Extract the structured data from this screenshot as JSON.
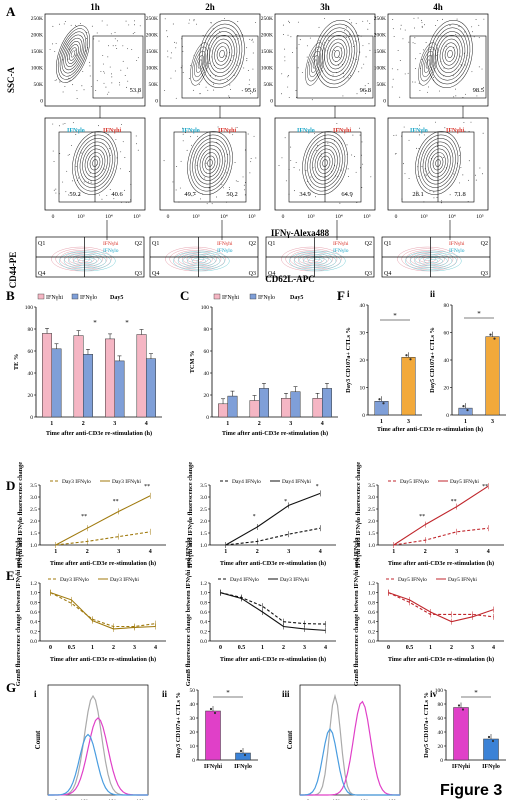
{
  "panel_labels": [
    "A",
    "B",
    "C",
    "D",
    "E",
    "F",
    "G"
  ],
  "figure_title": "Figure 3",
  "panelA": {
    "time_titles": [
      "1h",
      "2h",
      "3h",
      "4h"
    ],
    "ytick_row1": [
      "250K",
      "200K",
      "150K",
      "100K",
      "50K",
      "0"
    ],
    "row1_values": [
      "53.8",
      "95.6",
      "96.8",
      "98.5"
    ],
    "row2_left": [
      "59.2",
      "49.7",
      "34.9",
      "28.1"
    ],
    "row2_right": [
      "40.6",
      "50.2",
      "64.9",
      "71.8"
    ],
    "row2_labels": {
      "lo": "IFNγlo",
      "hi": "IFNγhi"
    },
    "xtick": [
      "0",
      "10³",
      "10⁴",
      "10⁵"
    ],
    "ylabel_top": "SSC-A",
    "xlabel_mid": "IFNγ-Alexa488",
    "row3_quads": [
      "Q1",
      "Q2",
      "Q3",
      "Q4"
    ],
    "row3_legend": [
      "IFNγhi",
      "IFNγlo"
    ],
    "ylabel_bottom": "CD44-PE",
    "xlabel_bottom": "CD62L-APC"
  },
  "panelB": {
    "ylabel": "TE %",
    "legend": [
      "IFNγhi",
      "IFNγlo",
      "Day5"
    ],
    "xlabel": "Time after anti-CD3e re-stimulation (h)",
    "categories": [
      "1",
      "2",
      "3",
      "4"
    ],
    "yticks": [
      "0",
      "20",
      "40",
      "60",
      "80",
      "100"
    ],
    "sig": [
      "*",
      "*"
    ]
  },
  "panelC": {
    "ylabel": "TCM %",
    "legend": [
      "IFNγhi",
      "IFNγlo",
      "Day5"
    ],
    "xlabel": "Time after anti-CD3e re-stimulation (h)",
    "categories": [
      "1",
      "2",
      "3",
      "4"
    ],
    "yticks": [
      "0",
      "20",
      "40",
      "60",
      "80",
      "100"
    ]
  },
  "panelF": {
    "sub": [
      "i",
      "ii"
    ],
    "ylabel_i": "Day3 CD107a+ CTLs %",
    "ylabel_ii": "Day5 CD107a+ CTLs %",
    "yticks_i": [
      "0",
      "10",
      "20",
      "30",
      "40"
    ],
    "yticks_ii": [
      "0",
      "20",
      "40",
      "60",
      "80"
    ],
    "categories": [
      "1",
      "3"
    ],
    "xlabel": "Time after anti-CD3e re-stimulation (h)",
    "sig": "*"
  },
  "panelD": {
    "ylabel": "IFNγhi and IFNγlo fluorescence change",
    "legends": [
      [
        "Day3 IFNγlo",
        "Day3 IFNγhi"
      ],
      [
        "Day4 IFNγlo",
        "Day4 IFNγhi"
      ],
      [
        "Day5 IFNγlo",
        "Day5 IFNγhi"
      ]
    ],
    "yticks": [
      "1.0",
      "1.5",
      "2.0",
      "2.5",
      "3.0",
      "3.5"
    ],
    "categories": [
      "1",
      "2",
      "3",
      "4"
    ],
    "xlabel": "Time after anti-CD3e re-stimulation (h)",
    "sig_ticks": [
      "**",
      "**",
      "**",
      "*",
      "*",
      "*",
      "**",
      "**",
      "**"
    ]
  },
  "panelE": {
    "ylabel": "GzmB fluorescence change between IFNγhi and IFNγlo",
    "legends": [
      [
        "Day3 IFNγlo",
        "Day3 IFNγhi"
      ],
      [
        "Day4 IFNγlo",
        "Day3 IFNγhi"
      ],
      [
        "Day5 IFNγlo",
        "Day5 IFNγhi"
      ]
    ],
    "yticks": [
      "0.0",
      "0.2",
      "0.4",
      "0.6",
      "0.8",
      "1.0",
      "1.2"
    ],
    "categories": [
      "0",
      "0.5",
      "1",
      "2",
      "3",
      "4"
    ],
    "xlabel": "Time after anti-CD3e re-stimulation (h)"
  },
  "panelG": {
    "sub": [
      "i",
      "ii",
      "iii",
      "iv"
    ],
    "ylabel_hist": "Count",
    "xlabel_hist": "CD107a-PE",
    "xtick": [
      "0",
      "10³",
      "10⁴",
      "10⁵"
    ],
    "ylabel_ii": "Day3 CD107a+ CTLs %",
    "ylabel_iv": "Day5 CD107a+ CTLs %",
    "yticks_ii": [
      "0",
      "10",
      "20",
      "30",
      "40",
      "50"
    ],
    "yticks_iv": [
      "0",
      "20",
      "40",
      "60",
      "80",
      "100"
    ],
    "categories": [
      "IFNγhi",
      "IFNγlo"
    ],
    "sig": "*"
  },
  "colors": {
    "pink": "#f5b6c4",
    "blue": "#7f9fd8",
    "gold": "#a07a0e",
    "black": "#111111",
    "red": "#c0262c",
    "orange": "#e9a74a",
    "magenta": "#e040c8",
    "lightblue": "#4a9de0",
    "gray": "#aaaaaa"
  },
  "chart_data": [
    {
      "type": "bar",
      "panel": "B",
      "categories": [
        "1",
        "2",
        "3",
        "4"
      ],
      "series": [
        {
          "name": "IFNγhi",
          "values": [
            76,
            74,
            71,
            75
          ]
        },
        {
          "name": "IFNγlo",
          "values": [
            62,
            57,
            51,
            53
          ]
        }
      ],
      "ylim": [
        0,
        100
      ]
    },
    {
      "type": "bar",
      "panel": "C",
      "categories": [
        "1",
        "2",
        "3",
        "4"
      ],
      "series": [
        {
          "name": "IFNγhi",
          "values": [
            12,
            15,
            17,
            17
          ]
        },
        {
          "name": "IFNγlo",
          "values": [
            19,
            26,
            23,
            26
          ]
        }
      ],
      "ylim": [
        0,
        100
      ]
    },
    {
      "type": "bar",
      "panel": "F-i",
      "categories": [
        "1",
        "3"
      ],
      "values": [
        5,
        21
      ],
      "ylim": [
        0,
        40
      ]
    },
    {
      "type": "bar",
      "panel": "F-ii",
      "categories": [
        "1",
        "3"
      ],
      "values": [
        5,
        57
      ],
      "ylim": [
        0,
        80
      ]
    },
    {
      "type": "line",
      "panel": "D-day3",
      "x": [
        1,
        2,
        3,
        4
      ],
      "series": [
        {
          "name": "Day3 IFNγlo",
          "values": [
            1.0,
            1.15,
            1.35,
            1.55
          ]
        },
        {
          "name": "Day3 IFNγhi",
          "values": [
            1.0,
            1.7,
            2.4,
            3.05
          ]
        }
      ]
    },
    {
      "type": "line",
      "panel": "D-day4",
      "x": [
        1,
        2,
        3,
        4
      ],
      "series": [
        {
          "name": "Day4 IFNγlo",
          "values": [
            1.0,
            1.15,
            1.45,
            1.7
          ]
        },
        {
          "name": "Day4 IFNγhi",
          "values": [
            1.0,
            1.75,
            2.65,
            3.15
          ]
        }
      ]
    },
    {
      "type": "line",
      "panel": "D-day5",
      "x": [
        1,
        2,
        3,
        4
      ],
      "series": [
        {
          "name": "Day5 IFNγlo",
          "values": [
            1.0,
            1.2,
            1.55,
            1.7
          ]
        },
        {
          "name": "Day5 IFNγhi",
          "values": [
            1.0,
            1.85,
            2.6,
            3.45
          ]
        }
      ]
    },
    {
      "type": "line",
      "panel": "E-day3",
      "x": [
        "0",
        "0.5",
        "1",
        "2",
        "3",
        "4"
      ],
      "series": [
        {
          "name": "Day3 IFNγlo",
          "values": [
            1.0,
            0.78,
            0.45,
            0.3,
            0.3,
            0.36
          ]
        },
        {
          "name": "Day3 IFNγhi",
          "values": [
            1.0,
            0.85,
            0.42,
            0.25,
            0.28,
            0.3
          ]
        }
      ]
    },
    {
      "type": "line",
      "panel": "E-day4",
      "x": [
        "0",
        "0.5",
        "1",
        "2",
        "3",
        "4"
      ],
      "series": [
        {
          "name": "Day4 IFNγlo",
          "values": [
            1.0,
            0.9,
            0.72,
            0.4,
            0.36,
            0.35
          ]
        },
        {
          "name": "Day3 IFNγhi",
          "values": [
            1.0,
            0.88,
            0.6,
            0.3,
            0.25,
            0.22
          ]
        }
      ]
    },
    {
      "type": "line",
      "panel": "E-day5",
      "x": [
        "0",
        "0.5",
        "1",
        "2",
        "3",
        "4"
      ],
      "series": [
        {
          "name": "Day5 IFNγlo",
          "values": [
            1.0,
            0.8,
            0.55,
            0.55,
            0.55,
            0.5
          ]
        },
        {
          "name": "Day5 IFNγhi",
          "values": [
            1.0,
            0.85,
            0.6,
            0.4,
            0.5,
            0.65
          ]
        }
      ]
    },
    {
      "type": "bar",
      "panel": "G-ii",
      "categories": [
        "IFNγhi",
        "IFNγlo"
      ],
      "values": [
        35,
        5
      ],
      "ylim": [
        0,
        50
      ]
    },
    {
      "type": "bar",
      "panel": "G-iv",
      "categories": [
        "IFNγhi",
        "IFNγlo"
      ],
      "values": [
        75,
        30
      ],
      "ylim": [
        0,
        100
      ]
    }
  ]
}
